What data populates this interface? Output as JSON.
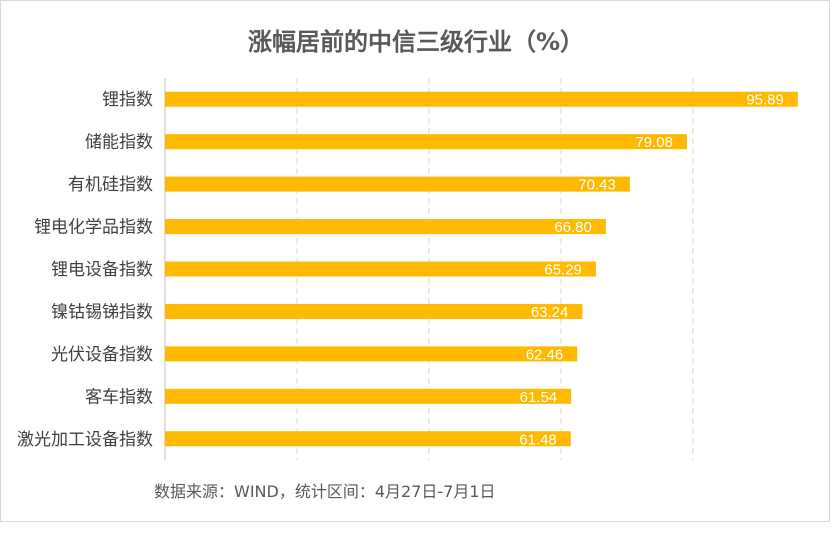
{
  "chart_data": {
    "type": "bar",
    "orientation": "horizontal",
    "title": "涨幅居前的中信三级行业（%）",
    "categories": [
      "锂指数",
      "储能指数",
      "有机硅指数",
      "锂电化学品指数",
      "锂电设备指数",
      "镍钴锡锑指数",
      "光伏设备指数",
      "客车指数",
      "激光加工设备指数"
    ],
    "values": [
      95.89,
      79.08,
      70.43,
      66.8,
      65.29,
      63.24,
      62.46,
      61.54,
      61.48
    ],
    "value_labels": [
      "95.89",
      "79.08",
      "70.43",
      "66.80",
      "65.29",
      "63.24",
      "62.46",
      "61.54",
      "61.48"
    ],
    "xlim": [
      0,
      100
    ],
    "grid": true,
    "bar_color": "#FFB900",
    "source": "数据来源：WIND，统计区间：4月27日-7月1日"
  }
}
